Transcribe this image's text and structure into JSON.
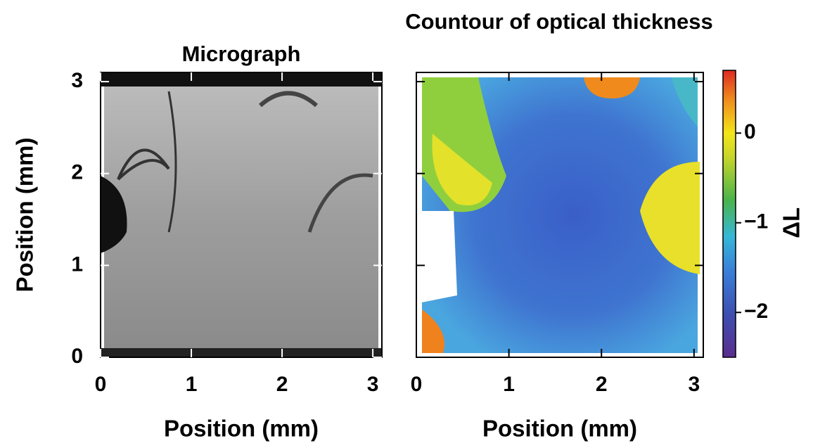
{
  "chart_data": [
    {
      "type": "image",
      "title": "Micrograph",
      "xlabel": "Position (mm)",
      "ylabel": "Position (mm)",
      "xlim": [
        0,
        3.1
      ],
      "ylim": [
        0,
        3.1
      ],
      "xticks": [
        0,
        1,
        2,
        3
      ],
      "yticks": [
        0,
        1,
        2,
        3
      ]
    },
    {
      "type": "heatmap",
      "title": "Countour of optical thickness",
      "xlabel": "Position (mm)",
      "xlim": [
        0,
        3.1
      ],
      "ylim": [
        0,
        3.1
      ],
      "xticks": [
        0,
        1,
        2,
        3
      ],
      "yticks": [
        0,
        1,
        2,
        3
      ],
      "colorbar": {
        "label": "ΔL",
        "lim": [
          -2.5,
          0.7
        ],
        "ticks": [
          {
            "value": 0,
            "label": "0"
          },
          {
            "value": -1,
            "label": "−1"
          },
          {
            "value": -2,
            "label": "−2"
          }
        ]
      }
    }
  ]
}
